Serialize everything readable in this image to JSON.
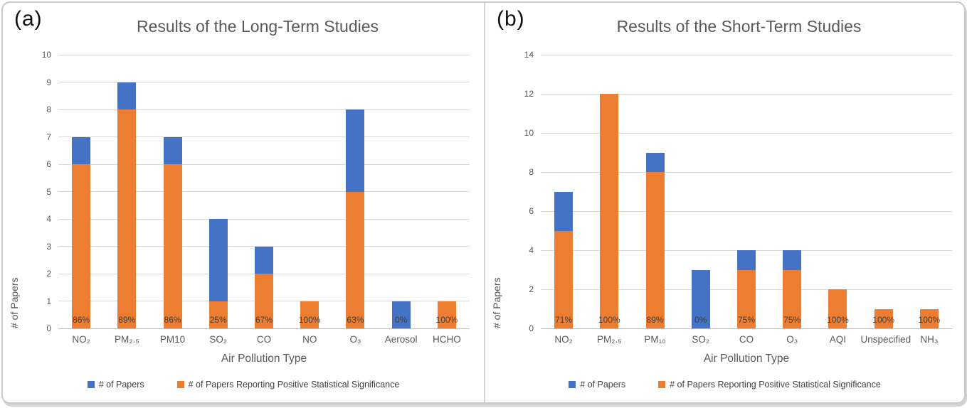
{
  "legend": {
    "items": [
      {
        "label": "# of Papers",
        "color": "#4472C4",
        "icon": "legend-swatch-blue"
      },
      {
        "label": "# of Papers Reporting Positive Statistical Significance",
        "color": "#ED7D31",
        "icon": "legend-swatch-orange"
      }
    ]
  },
  "colors": {
    "total_series": "#4472C4",
    "positive_series": "#ED7D31",
    "gridline": "#d9d9d9",
    "axis_text": "#595959",
    "title_text": "#595959",
    "bar_label_text": "#3f3f3f"
  },
  "chart_data": [
    {
      "type": "bar",
      "stacked": true,
      "panel_label": "(a)",
      "title": "Results of the Long-Term Studies",
      "xlabel": "Air Pollution Type",
      "ylabel": "# of Papers",
      "ylim": [
        0,
        10
      ],
      "ytick_step": 1,
      "grid": true,
      "legend_position": "bottom",
      "categories": [
        "NO₂",
        "PM₂.₅",
        "PM10",
        "SO₂",
        "CO",
        "NO",
        "O₃",
        "Aerosol",
        "HCHO"
      ],
      "series": [
        {
          "name": "# of Papers",
          "color": "#4472C4",
          "values": [
            7,
            9,
            7,
            4,
            3,
            1,
            8,
            1,
            1
          ]
        },
        {
          "name": "# of Papers Reporting Positive Statistical Significance",
          "color": "#ED7D31",
          "values": [
            6,
            8,
            6,
            1,
            2,
            1,
            5,
            0,
            1
          ]
        }
      ],
      "bar_labels": [
        "86%",
        "89%",
        "86%",
        "25%",
        "67%",
        "100%",
        "63%",
        "0%",
        "100%"
      ]
    },
    {
      "type": "bar",
      "stacked": true,
      "panel_label": "(b)",
      "title": "Results of the Short-Term Studies",
      "xlabel": "Air Pollution Type",
      "ylabel": "# of Papers",
      "ylim": [
        0,
        14
      ],
      "ytick_step": 2,
      "grid": true,
      "legend_position": "bottom",
      "categories": [
        "NO₂",
        "PM₂.₅",
        "PM₁₀",
        "SO₂",
        "CO",
        "O₃",
        "AQI",
        "Unspecified",
        "NH₃"
      ],
      "series": [
        {
          "name": "# of Papers",
          "color": "#4472C4",
          "values": [
            7,
            12,
            9,
            3,
            4,
            4,
            2,
            1,
            1
          ]
        },
        {
          "name": "# of Papers Reporting Positive Statistical Significance",
          "color": "#ED7D31",
          "values": [
            5,
            12,
            8,
            0,
            3,
            3,
            2,
            1,
            1
          ]
        }
      ],
      "bar_labels": [
        "71%",
        "100%",
        "89%",
        "0%",
        "75%",
        "75%",
        "100%",
        "100%",
        "100%"
      ]
    }
  ]
}
